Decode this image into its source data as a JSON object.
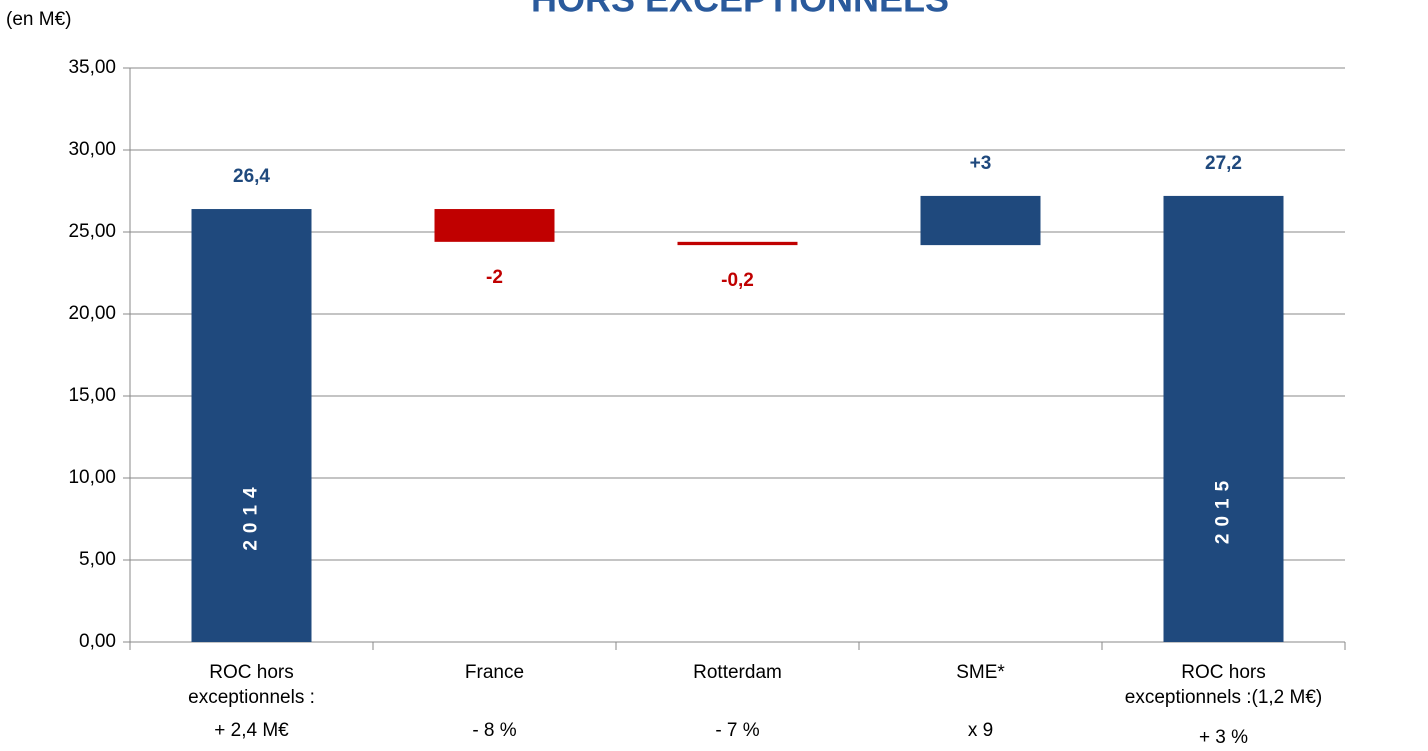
{
  "chart_data": {
    "type": "waterfall",
    "title": "HORS EXCEPTIONNELS",
    "unit_label": "(en M€)",
    "categories": [
      [
        "ROC hors",
        "exceptionnels :"
      ],
      [
        "France"
      ],
      [
        "Rotterdam"
      ],
      [
        "SME*"
      ],
      [
        "ROC hors",
        "exceptionnels :(1,2 M€)"
      ]
    ],
    "category_notes": [
      "+ 2,4 M€",
      "- 8 %",
      "- 7 %",
      "x 9",
      "+ 3 %"
    ],
    "kinds": [
      "total",
      "delta",
      "delta",
      "delta",
      "total"
    ],
    "values": [
      26.4,
      -2,
      -0.2,
      3,
      27.2
    ],
    "value_labels": [
      "26,4",
      "-2",
      "-0,2",
      "+3",
      "27,2"
    ],
    "bar_texts": [
      "2014",
      null,
      null,
      null,
      "2015"
    ],
    "colors": {
      "total": "#1f497d",
      "increase": "#1f497d",
      "decrease": "#c00000"
    },
    "ylim": [
      0,
      35
    ],
    "yticks": [
      {
        "value": 0,
        "label": "0,00"
      },
      {
        "value": 5,
        "label": "5,00"
      },
      {
        "value": 10,
        "label": "10,00"
      },
      {
        "value": 15,
        "label": "15,00"
      },
      {
        "value": 20,
        "label": "20,00"
      },
      {
        "value": 25,
        "label": "25,00"
      },
      {
        "value": 30,
        "label": "30,00"
      },
      {
        "value": 35,
        "label": "35,00"
      }
    ],
    "grid": true
  }
}
